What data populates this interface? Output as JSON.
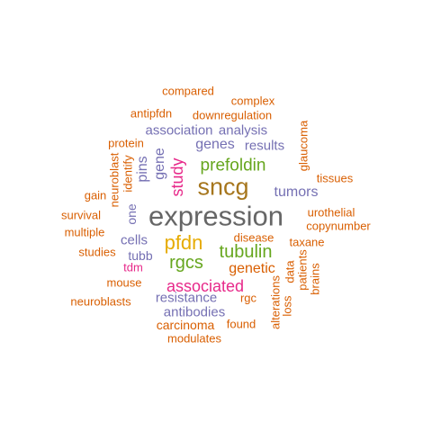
{
  "palette": {
    "orange": "#d95f02",
    "purple": "#7570b3",
    "magenta": "#e7298a",
    "green": "#66a61e",
    "gold": "#e6ab02",
    "brown": "#a6761d",
    "gray": "#666666"
  },
  "words": [
    {
      "text": "compared",
      "color": "orange"
    },
    {
      "text": "complex",
      "color": "orange"
    },
    {
      "text": "antipfdn",
      "color": "orange"
    },
    {
      "text": "downregulation",
      "color": "orange"
    },
    {
      "text": "association",
      "color": "purple"
    },
    {
      "text": "analysis",
      "color": "purple"
    },
    {
      "text": "protein",
      "color": "orange"
    },
    {
      "text": "genes",
      "color": "purple"
    },
    {
      "text": "results",
      "color": "purple"
    },
    {
      "text": "prefoldin",
      "color": "green"
    },
    {
      "text": "glaucoma",
      "color": "orange"
    },
    {
      "text": "gene",
      "color": "purple"
    },
    {
      "text": "pins",
      "color": "purple"
    },
    {
      "text": "study",
      "color": "magenta"
    },
    {
      "text": "sncg",
      "color": "brown"
    },
    {
      "text": "neuroblast",
      "color": "orange"
    },
    {
      "text": "identify",
      "color": "orange"
    },
    {
      "text": "tissues",
      "color": "orange"
    },
    {
      "text": "tumors",
      "color": "purple"
    },
    {
      "text": "gain",
      "color": "orange"
    },
    {
      "text": "one",
      "color": "purple"
    },
    {
      "text": "urothelial",
      "color": "orange"
    },
    {
      "text": "survival",
      "color": "orange"
    },
    {
      "text": "expression",
      "color": "gray"
    },
    {
      "text": "copynumber",
      "color": "orange"
    },
    {
      "text": "multiple",
      "color": "orange"
    },
    {
      "text": "disease",
      "color": "orange"
    },
    {
      "text": "cells",
      "color": "purple"
    },
    {
      "text": "pfdn",
      "color": "gold"
    },
    {
      "text": "tubulin",
      "color": "green"
    },
    {
      "text": "taxane",
      "color": "orange"
    },
    {
      "text": "studies",
      "color": "orange"
    },
    {
      "text": "tubb",
      "color": "purple"
    },
    {
      "text": "rgcs",
      "color": "green"
    },
    {
      "text": "genetic",
      "color": "orange"
    },
    {
      "text": "tdm",
      "color": "magenta"
    },
    {
      "text": "data",
      "color": "orange"
    },
    {
      "text": "patients",
      "color": "orange"
    },
    {
      "text": "brains",
      "color": "orange"
    },
    {
      "text": "mouse",
      "color": "orange"
    },
    {
      "text": "associated",
      "color": "magenta"
    },
    {
      "text": "neuroblasts",
      "color": "orange"
    },
    {
      "text": "resistance",
      "color": "purple"
    },
    {
      "text": "rgc",
      "color": "orange"
    },
    {
      "text": "loss",
      "color": "orange"
    },
    {
      "text": "alterations",
      "color": "orange"
    },
    {
      "text": "antibodies",
      "color": "purple"
    },
    {
      "text": "carcinoma",
      "color": "orange"
    },
    {
      "text": "found",
      "color": "orange"
    },
    {
      "text": "modulates",
      "color": "orange"
    }
  ]
}
